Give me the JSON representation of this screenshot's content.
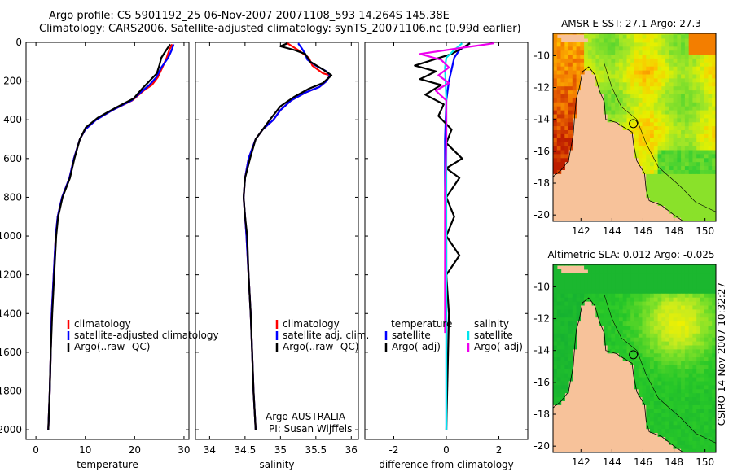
{
  "header": {
    "line1": "Argo profile: CS 5901192_25 06-Nov-2007 20071108_593 14.264S 145.38E",
    "line2": "Climatology: CARS2006. Satellite-adjusted climatology: synTS_20071106.nc (0.99d earlier)"
  },
  "side_label": "CSIRO 14-Nov-2007 10:32:27",
  "chart_data": [
    {
      "type": "line",
      "xlabel": "temperature",
      "ylabel": "",
      "xlim": [
        -2,
        31
      ],
      "ylim": [
        2050,
        0
      ],
      "xticks": [
        "0",
        "10",
        "20",
        "30"
      ],
      "yticks": [
        "0",
        "200",
        "400",
        "600",
        "800",
        "1000",
        "1200",
        "1400",
        "1600",
        "1800",
        "2000"
      ],
      "legend": [
        "climatology",
        "satellite-adjusted climatology",
        "Argo(..raw -QC)"
      ],
      "series": [
        {
          "name": "climatology",
          "color": "#ff0000",
          "points": [
            [
              27.6,
              10
            ],
            [
              27.0,
              40
            ],
            [
              26.5,
              80
            ],
            [
              25.6,
              130
            ],
            [
              24.7,
              180
            ],
            [
              23.5,
              220
            ],
            [
              21.8,
              250
            ],
            [
              19.5,
              300
            ],
            [
              15.5,
              350
            ],
            [
              12.2,
              400
            ],
            [
              10.0,
              450
            ],
            [
              8.9,
              500
            ],
            [
              7.7,
              600
            ],
            [
              6.8,
              700
            ],
            [
              5.3,
              800
            ],
            [
              4.4,
              900
            ],
            [
              4.0,
              1000
            ],
            [
              3.6,
              1200
            ],
            [
              3.2,
              1400
            ],
            [
              3.0,
              1600
            ],
            [
              2.8,
              1800
            ],
            [
              2.5,
              2000
            ]
          ]
        },
        {
          "name": "satellite-adjusted climatology",
          "color": "#0000ff",
          "points": [
            [
              27.9,
              10
            ],
            [
              27.5,
              40
            ],
            [
              26.8,
              80
            ],
            [
              25.4,
              130
            ],
            [
              24.4,
              180
            ],
            [
              23.0,
              220
            ],
            [
              21.6,
              250
            ],
            [
              19.4,
              300
            ],
            [
              15.5,
              350
            ],
            [
              12.2,
              400
            ],
            [
              10.0,
              450
            ],
            [
              8.9,
              500
            ],
            [
              7.7,
              600
            ],
            [
              6.8,
              700
            ],
            [
              5.3,
              800
            ],
            [
              4.4,
              900
            ],
            [
              4.0,
              1000
            ],
            [
              3.6,
              1200
            ],
            [
              3.2,
              1400
            ],
            [
              3.0,
              1600
            ],
            [
              2.8,
              1800
            ],
            [
              2.5,
              2000
            ]
          ]
        },
        {
          "name": "Argo(..raw -QC)",
          "color": "#000000",
          "points": [
            [
              27.2,
              10
            ],
            [
              26.4,
              40
            ],
            [
              25.4,
              80
            ],
            [
              25.0,
              120
            ],
            [
              24.5,
              160
            ],
            [
              23.0,
              200
            ],
            [
              21.5,
              240
            ],
            [
              19.8,
              290
            ],
            [
              16.0,
              340
            ],
            [
              12.5,
              390
            ],
            [
              10.1,
              440
            ],
            [
              8.9,
              500
            ],
            [
              7.8,
              600
            ],
            [
              6.9,
              700
            ],
            [
              5.4,
              800
            ],
            [
              4.5,
              900
            ],
            [
              4.1,
              1000
            ],
            [
              3.7,
              1200
            ],
            [
              3.3,
              1400
            ],
            [
              3.0,
              1600
            ],
            [
              2.8,
              1800
            ],
            [
              2.5,
              2000
            ]
          ]
        }
      ]
    },
    {
      "type": "line",
      "xlabel": "salinity",
      "ylabel": "",
      "xlim": [
        33.8,
        36.1
      ],
      "ylim": [
        2050,
        0
      ],
      "xticks": [
        "34",
        "34.5",
        "35",
        "35.5",
        "36"
      ],
      "legend": [
        "climatology",
        "satellite adj. clim.",
        "Argo(..raw -QC)"
      ],
      "annotations": [
        "Argo AUSTRALIA",
        "PI: Susan Wijffels"
      ],
      "series": [
        {
          "name": "climatology",
          "color": "#ff0000",
          "points": [
            [
              35.1,
              5
            ],
            [
              35.25,
              40
            ],
            [
              35.4,
              80
            ],
            [
              35.45,
              120
            ],
            [
              35.6,
              160
            ],
            [
              35.7,
              170
            ],
            [
              35.65,
              200
            ],
            [
              35.55,
              230
            ],
            [
              35.35,
              260
            ],
            [
              35.15,
              300
            ],
            [
              35.0,
              350
            ],
            [
              34.9,
              400
            ],
            [
              34.75,
              450
            ],
            [
              34.65,
              500
            ],
            [
              34.55,
              600
            ],
            [
              34.5,
              700
            ],
            [
              34.48,
              800
            ],
            [
              34.5,
              900
            ],
            [
              34.52,
              1000
            ],
            [
              34.55,
              1200
            ],
            [
              34.58,
              1400
            ],
            [
              34.6,
              1600
            ],
            [
              34.62,
              1800
            ],
            [
              34.65,
              2000
            ]
          ]
        },
        {
          "name": "satellite adj. clim.",
          "color": "#0000ff",
          "points": [
            [
              35.25,
              5
            ],
            [
              35.3,
              30
            ],
            [
              35.35,
              60
            ],
            [
              35.38,
              90
            ],
            [
              35.5,
              120
            ],
            [
              35.65,
              150
            ],
            [
              35.7,
              170
            ],
            [
              35.65,
              200
            ],
            [
              35.55,
              230
            ],
            [
              35.35,
              260
            ],
            [
              35.15,
              300
            ],
            [
              35.0,
              350
            ],
            [
              34.9,
              400
            ],
            [
              34.75,
              450
            ],
            [
              34.65,
              500
            ],
            [
              34.55,
              600
            ],
            [
              34.5,
              700
            ],
            [
              34.48,
              800
            ],
            [
              34.5,
              900
            ],
            [
              34.52,
              1000
            ],
            [
              34.55,
              1200
            ],
            [
              34.58,
              1400
            ],
            [
              34.6,
              1600
            ],
            [
              34.62,
              1800
            ],
            [
              34.65,
              2000
            ]
          ]
        },
        {
          "name": "Argo(..raw -QC)",
          "color": "#000000",
          "points": [
            [
              35.1,
              5
            ],
            [
              35.0,
              20
            ],
            [
              35.2,
              40
            ],
            [
              35.35,
              60
            ],
            [
              35.42,
              100
            ],
            [
              35.6,
              140
            ],
            [
              35.72,
              170
            ],
            [
              35.6,
              210
            ],
            [
              35.4,
              240
            ],
            [
              35.2,
              280
            ],
            [
              35.0,
              330
            ],
            [
              34.85,
              400
            ],
            [
              34.75,
              450
            ],
            [
              34.65,
              500
            ],
            [
              34.57,
              600
            ],
            [
              34.5,
              700
            ],
            [
              34.48,
              800
            ],
            [
              34.5,
              900
            ],
            [
              34.53,
              1000
            ],
            [
              34.55,
              1200
            ],
            [
              34.58,
              1400
            ],
            [
              34.6,
              1600
            ],
            [
              34.62,
              1800
            ],
            [
              34.65,
              2000
            ]
          ]
        }
      ]
    },
    {
      "type": "line",
      "xlabel": "difference from climatology",
      "ylabel": "",
      "xlim": [
        -3.1,
        3.1
      ],
      "ylim": [
        2050,
        0
      ],
      "xticks": [
        "-2",
        "0",
        "2"
      ],
      "legend_groups": [
        {
          "heading": "temperature",
          "entries": [
            "satellite",
            "Argo(-adj)"
          ]
        },
        {
          "heading": "salinity",
          "entries": [
            "satellite",
            "Argo(-adj)"
          ]
        }
      ],
      "series": [
        {
          "name": "temperature satellite",
          "color": "#0000ff",
          "points": [
            [
              0.9,
              5
            ],
            [
              0.5,
              40
            ],
            [
              0.3,
              80
            ],
            [
              0.2,
              140
            ],
            [
              0.1,
              200
            ],
            [
              0.0,
              300
            ],
            [
              -0.05,
              500
            ],
            [
              -0.05,
              600
            ],
            [
              -0.05,
              800
            ],
            [
              0.0,
              1000
            ],
            [
              0.0,
              1500
            ],
            [
              0.0,
              2000
            ]
          ]
        },
        {
          "name": "temperature Argo(-adj)",
          "color": "#000000",
          "points": [
            [
              0.9,
              5
            ],
            [
              0.6,
              30
            ],
            [
              0.2,
              60
            ],
            [
              -1.2,
              120
            ],
            [
              -0.4,
              150
            ],
            [
              -1.0,
              190
            ],
            [
              -0.2,
              220
            ],
            [
              -0.8,
              270
            ],
            [
              -0.1,
              320
            ],
            [
              -0.3,
              380
            ],
            [
              0.2,
              450
            ],
            [
              0.0,
              520
            ],
            [
              0.6,
              600
            ],
            [
              0.0,
              650
            ],
            [
              0.5,
              700
            ],
            [
              0.0,
              800
            ],
            [
              0.3,
              900
            ],
            [
              0.0,
              1000
            ],
            [
              0.5,
              1100
            ],
            [
              0.0,
              1200
            ],
            [
              0.1,
              1400
            ],
            [
              0.0,
              2000
            ]
          ]
        },
        {
          "name": "salinity satellite",
          "color": "#00e5ee",
          "points": [
            [
              0.6,
              5
            ],
            [
              0.3,
              40
            ],
            [
              0.0,
              80
            ],
            [
              -0.05,
              130
            ],
            [
              0.0,
              300
            ],
            [
              0.0,
              600
            ],
            [
              0.0,
              1000
            ],
            [
              0.0,
              1500
            ],
            [
              0.0,
              2000
            ]
          ]
        },
        {
          "name": "salinity Argo(-adj)",
          "color": "#ee00ee",
          "points": [
            [
              1.8,
              5
            ],
            [
              0.5,
              30
            ],
            [
              -1.0,
              60
            ],
            [
              -0.2,
              90
            ],
            [
              0.1,
              130
            ],
            [
              -0.3,
              170
            ],
            [
              0.1,
              210
            ],
            [
              -0.4,
              250
            ],
            [
              0.0,
              300
            ],
            [
              0.0,
              500
            ],
            [
              -0.05,
              800
            ],
            [
              -0.05,
              1200
            ],
            [
              -0.05,
              1500
            ]
          ]
        }
      ]
    },
    {
      "type": "heatmap",
      "title": "AMSR-E SST: 27.1  Argo: 27.3",
      "xticks": [
        "142",
        "144",
        "146",
        "148",
        "150"
      ],
      "yticks": [
        "-10",
        "-12",
        "-14",
        "-16",
        "-18",
        "-20"
      ],
      "xlim": [
        140.2,
        150.7
      ],
      "ylim": [
        -20.4,
        -8.6
      ],
      "argo_position": {
        "lon": 145.38,
        "lat": -14.264
      },
      "land_color": "#f7c29a"
    },
    {
      "type": "heatmap",
      "title": "Altimetric SLA: 0.012  Argo: -0.025",
      "xticks": [
        "142",
        "144",
        "146",
        "148",
        "150"
      ],
      "yticks": [
        "-10",
        "-12",
        "-14",
        "-16",
        "-18",
        "-20"
      ],
      "xlim": [
        140.2,
        150.7
      ],
      "ylim": [
        -20.4,
        -8.6
      ],
      "argo_position": {
        "lon": 145.38,
        "lat": -14.264
      },
      "land_color": "#f7c29a"
    }
  ]
}
